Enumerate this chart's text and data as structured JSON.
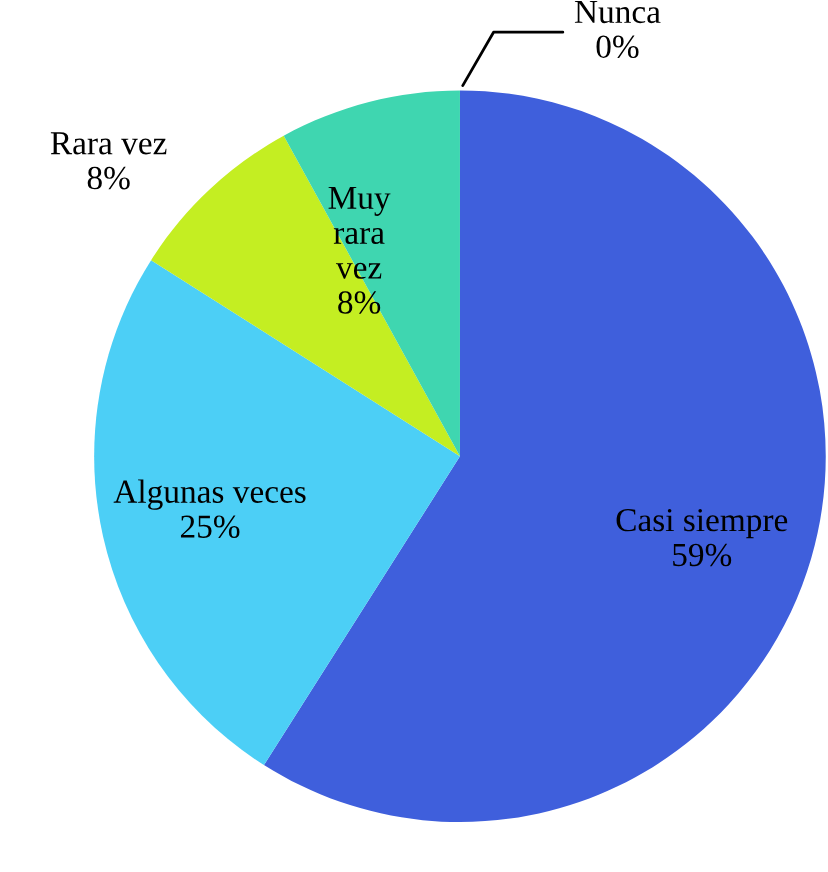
{
  "chart_data": {
    "type": "pie",
    "categories": [
      "Casi siempre",
      "Algunas veces",
      "Rara vez",
      "Muy rara vez",
      "Nunca"
    ],
    "values": [
      59,
      25,
      8,
      8,
      0
    ],
    "value_labels": [
      "59%",
      "25%",
      "8%",
      "8%",
      "0%"
    ],
    "colors": [
      "#3f5fdc",
      "#4ccff6",
      "#c4ee22",
      "#3fd6b0",
      "#2a9a80"
    ]
  }
}
